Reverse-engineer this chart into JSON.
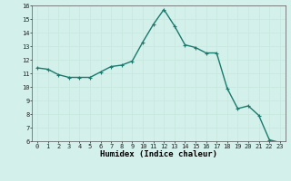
{
  "x": [
    0,
    1,
    2,
    3,
    4,
    5,
    6,
    7,
    8,
    9,
    10,
    11,
    12,
    13,
    14,
    15,
    16,
    17,
    18,
    19,
    20,
    21,
    22,
    23
  ],
  "y": [
    11.4,
    11.3,
    10.9,
    10.7,
    10.7,
    10.7,
    11.1,
    11.5,
    11.6,
    11.9,
    13.3,
    14.6,
    15.7,
    14.5,
    13.1,
    12.9,
    12.5,
    12.5,
    9.9,
    8.4,
    8.6,
    7.9,
    6.1,
    5.9
  ],
  "line_color": "#1a7a6e",
  "marker": "+",
  "marker_size": 3,
  "bg_color": "#d4f0eb",
  "grid_color": "#c8e8e0",
  "xlabel": "Humidex (Indice chaleur)",
  "ylim": [
    6,
    16
  ],
  "xlim": [
    -0.5,
    23.5
  ],
  "yticks": [
    6,
    7,
    8,
    9,
    10,
    11,
    12,
    13,
    14,
    15,
    16
  ],
  "xticks": [
    0,
    1,
    2,
    3,
    4,
    5,
    6,
    7,
    8,
    9,
    10,
    11,
    12,
    13,
    14,
    15,
    16,
    17,
    18,
    19,
    20,
    21,
    22,
    23
  ],
  "tick_label_fontsize": 5.0,
  "xlabel_fontsize": 6.5,
  "line_width": 1.0,
  "marker_edge_width": 0.8
}
